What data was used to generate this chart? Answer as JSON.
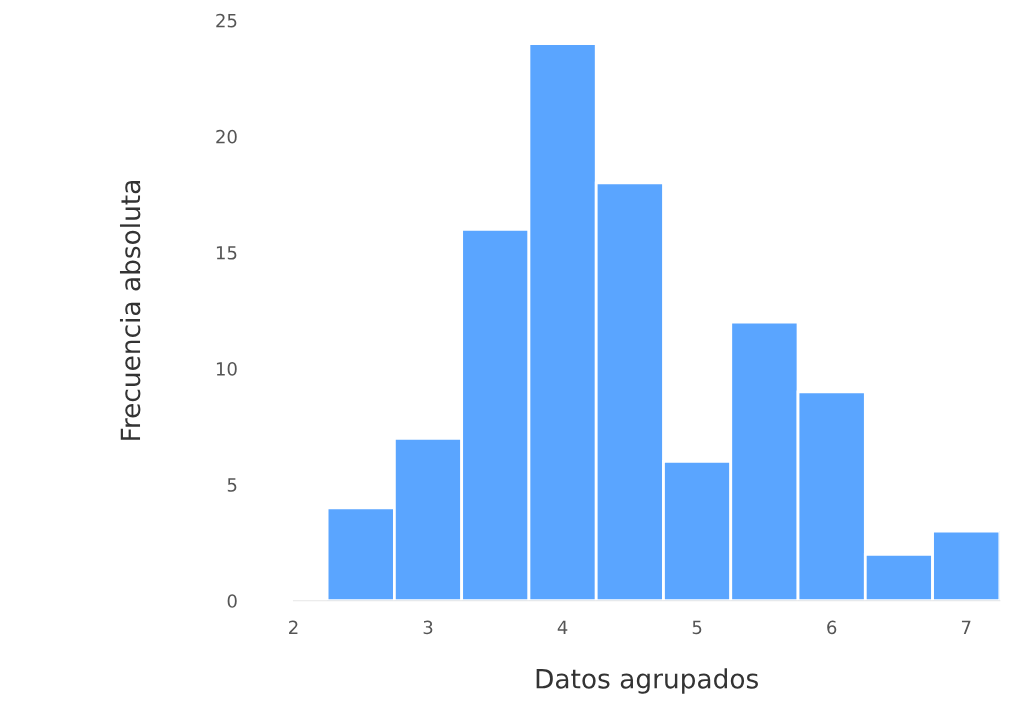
{
  "chart_data": {
    "type": "histogram",
    "xlabel": "Datos agrupados",
    "ylabel": "Frecuencia absoluta",
    "bins": [
      2.25,
      2.75,
      3.25,
      3.75,
      4.25,
      4.75,
      5.25,
      5.75,
      6.25,
      6.75,
      7.25
    ],
    "values": [
      4,
      7,
      16,
      24,
      18,
      6,
      12,
      9,
      2,
      3
    ],
    "color": "#5aa5ff",
    "xlim": [
      2,
      7.25
    ],
    "xticks": [
      2,
      3,
      4,
      5,
      6,
      7
    ],
    "ylim": [
      0,
      25
    ],
    "yticks": [
      0,
      5,
      10,
      15,
      20,
      25
    ],
    "grid": false
  }
}
